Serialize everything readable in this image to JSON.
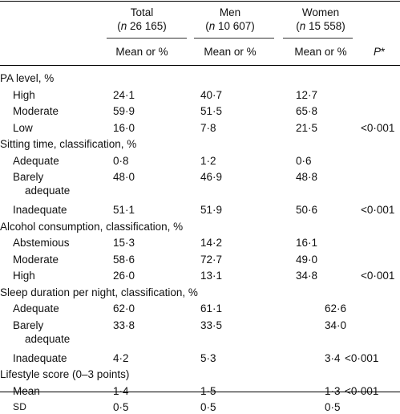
{
  "header": {
    "total": {
      "label": "Total",
      "n_italic": "n",
      "n_value": "26 165"
    },
    "men": {
      "label": "Men",
      "n_italic": "n",
      "n_value": "10 607"
    },
    "women": {
      "label": "Women",
      "n_italic": "n",
      "n_value": "15 558"
    },
    "subheader": "Mean or %",
    "p_label": "P",
    "p_star": "*"
  },
  "rows": [
    {
      "type": "section",
      "label": "PA level, %"
    },
    {
      "type": "row",
      "label": "High",
      "total": "24·1",
      "men": "40·7",
      "women": "12·7",
      "p": ""
    },
    {
      "type": "row",
      "label": "Moderate",
      "total": "59·9",
      "men": "51·5",
      "women": "65·8",
      "p": ""
    },
    {
      "type": "row",
      "label": "Low",
      "total": "16·0",
      "men": "7·8",
      "women": "21·5",
      "p": "<0·001"
    },
    {
      "type": "section",
      "label": "Sitting time, classification, %"
    },
    {
      "type": "row",
      "label": "Adequate",
      "total": "0·8",
      "men": "1·2",
      "women": "0·6",
      "p": ""
    },
    {
      "type": "row",
      "label": "Barely",
      "label2": "adequate",
      "total": "48·0",
      "men": "46·9",
      "women": "48·8",
      "p": ""
    },
    {
      "type": "row",
      "label": "Inadequate",
      "total": "51·1",
      "men": "51·9",
      "women": "50·6",
      "p": "<0·001"
    },
    {
      "type": "section",
      "label": "Alcohol consumption, classification, %"
    },
    {
      "type": "row",
      "label": "Abstemious",
      "total": "15·3",
      "men": "14·2",
      "women": "16·1",
      "p": ""
    },
    {
      "type": "row",
      "label": "Moderate",
      "total": "58·6",
      "men": "72·7",
      "women": "49·0",
      "p": ""
    },
    {
      "type": "row",
      "label": "High",
      "total": "26·0",
      "men": "13·1",
      "women": "34·8",
      "p": "<0·001"
    },
    {
      "type": "section",
      "label": "Sleep duration per night, classification, %"
    },
    {
      "type": "row",
      "label": "Adequate",
      "total": "62·0",
      "men": "61·1",
      "women": "62·6",
      "p": ""
    },
    {
      "type": "row",
      "label": "Barely",
      "label2": "adequate",
      "total": "33·8",
      "men": "33·5",
      "women": "34·0",
      "p": ""
    },
    {
      "type": "row",
      "label": "Inadequate",
      "total": "4·2",
      "men": "5·3",
      "women": "3·4",
      "p": "<0·001"
    },
    {
      "type": "section",
      "label": "Lifestyle score (0–3 points)"
    },
    {
      "type": "row",
      "label": "Mean",
      "total": "1·4",
      "men": "1·5",
      "women": "1·3",
      "p": "<0·001"
    },
    {
      "type": "row",
      "label": "SD",
      "label_smallcaps": true,
      "total": "0·5",
      "men": "0·5",
      "women": "0·5",
      "p": ""
    }
  ]
}
